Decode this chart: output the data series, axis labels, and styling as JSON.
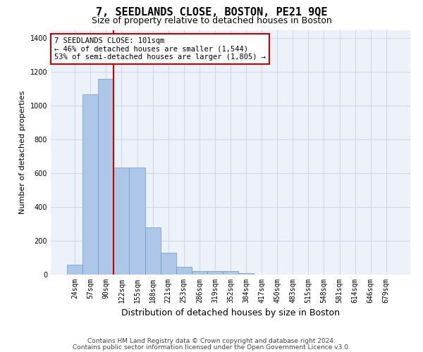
{
  "title": "7, SEEDLANDS CLOSE, BOSTON, PE21 9QE",
  "subtitle": "Size of property relative to detached houses in Boston",
  "xlabel": "Distribution of detached houses by size in Boston",
  "ylabel": "Number of detached properties",
  "categories": [
    "24sqm",
    "57sqm",
    "90sqm",
    "122sqm",
    "155sqm",
    "188sqm",
    "221sqm",
    "253sqm",
    "286sqm",
    "319sqm",
    "352sqm",
    "384sqm",
    "417sqm",
    "450sqm",
    "483sqm",
    "515sqm",
    "548sqm",
    "581sqm",
    "614sqm",
    "646sqm",
    "679sqm"
  ],
  "values": [
    60,
    1070,
    1160,
    635,
    635,
    280,
    130,
    45,
    20,
    20,
    20,
    10,
    0,
    0,
    0,
    0,
    0,
    0,
    0,
    0,
    0
  ],
  "bar_color": "#aec6e8",
  "bar_edge_color": "#6699cc",
  "vline_x_index": 2.5,
  "vline_color": "#cc0000",
  "annotation_line1": "7 SEEDLANDS CLOSE: 101sqm",
  "annotation_line2": "← 46% of detached houses are smaller (1,544)",
  "annotation_line3": "53% of semi-detached houses are larger (1,805) →",
  "annotation_box_color": "#cc0000",
  "ylim": [
    0,
    1450
  ],
  "yticks": [
    0,
    200,
    400,
    600,
    800,
    1000,
    1200,
    1400
  ],
  "grid_color": "#d0d8e8",
  "bg_color": "#edf2fa",
  "footer_line1": "Contains HM Land Registry data © Crown copyright and database right 2024.",
  "footer_line2": "Contains public sector information licensed under the Open Government Licence v3.0.",
  "title_fontsize": 11,
  "subtitle_fontsize": 9,
  "xlabel_fontsize": 9,
  "ylabel_fontsize": 8,
  "tick_fontsize": 7,
  "annot_fontsize": 7.5,
  "footer_fontsize": 6.5
}
